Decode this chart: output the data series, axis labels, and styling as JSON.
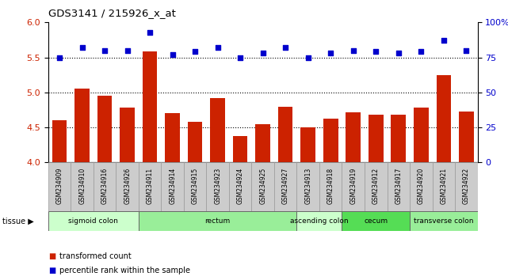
{
  "title": "GDS3141 / 215926_x_at",
  "samples": [
    "GSM234909",
    "GSM234910",
    "GSM234916",
    "GSM234926",
    "GSM234911",
    "GSM234914",
    "GSM234915",
    "GSM234923",
    "GSM234924",
    "GSM234925",
    "GSM234927",
    "GSM234913",
    "GSM234918",
    "GSM234919",
    "GSM234912",
    "GSM234917",
    "GSM234920",
    "GSM234921",
    "GSM234922"
  ],
  "bar_values": [
    4.6,
    5.05,
    4.95,
    4.78,
    5.58,
    4.7,
    4.58,
    4.92,
    4.38,
    4.55,
    4.8,
    4.5,
    4.62,
    4.72,
    4.68,
    4.68,
    4.78,
    5.25,
    4.73
  ],
  "dot_values": [
    75,
    82,
    80,
    80,
    93,
    77,
    79,
    82,
    75,
    78,
    82,
    75,
    78,
    80,
    79,
    78,
    79,
    87,
    80
  ],
  "bar_color": "#cc2200",
  "dot_color": "#0000cc",
  "ylim_left": [
    4.0,
    6.0
  ],
  "ylim_right": [
    0,
    100
  ],
  "yticks_left": [
    4.0,
    4.5,
    5.0,
    5.5,
    6.0
  ],
  "yticks_right": [
    0,
    25,
    50,
    75,
    100
  ],
  "ytick_labels_right": [
    "0",
    "25",
    "50",
    "75",
    "100%"
  ],
  "hlines": [
    4.5,
    5.0,
    5.5
  ],
  "tissue_groups": [
    {
      "label": "sigmoid colon",
      "start": 0,
      "end": 4,
      "color": "#ccffcc"
    },
    {
      "label": "rectum",
      "start": 4,
      "end": 11,
      "color": "#99ee99"
    },
    {
      "label": "ascending colon",
      "start": 11,
      "end": 13,
      "color": "#ccffcc"
    },
    {
      "label": "cecum",
      "start": 13,
      "end": 16,
      "color": "#55dd55"
    },
    {
      "label": "transverse colon",
      "start": 16,
      "end": 19,
      "color": "#99ee99"
    }
  ],
  "legend_bar_label": "transformed count",
  "legend_dot_label": "percentile rank within the sample",
  "tissue_label": "tissue",
  "bg_color": "#ffffff",
  "tick_label_color_left": "#cc2200",
  "tick_label_color_right": "#0000cc",
  "sample_box_color": "#cccccc",
  "sample_box_edge": "#999999"
}
